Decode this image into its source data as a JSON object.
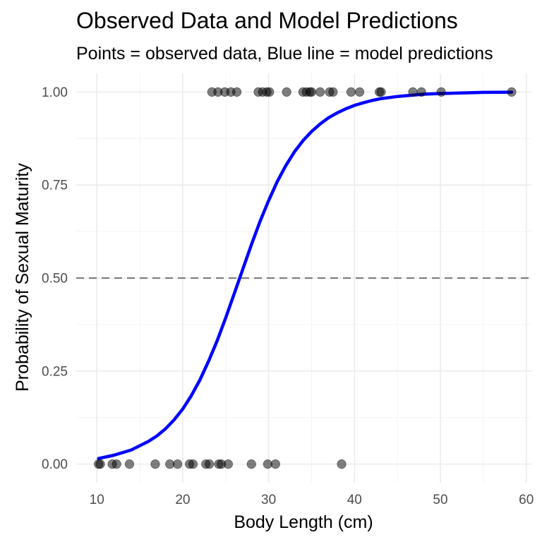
{
  "chart_data": {
    "type": "scatter",
    "title": "Observed Data and Model Predictions",
    "subtitle": "Points = observed data, Blue line = model predictions",
    "xlabel": "Body Length (cm)",
    "ylabel": "Probability of Sexual Maturity",
    "xlim": [
      7.6,
      60.6
    ],
    "ylim": [
      -0.05,
      1.05
    ],
    "x_ticks": [
      10,
      20,
      30,
      40,
      50,
      60
    ],
    "x_tick_labels": [
      "10",
      "20",
      "30",
      "40",
      "50",
      "60"
    ],
    "y_ticks": [
      0,
      0.25,
      0.5,
      0.75,
      1.0
    ],
    "y_tick_labels": [
      "0.00",
      "0.25",
      "0.50",
      "0.75",
      "1.00"
    ],
    "x_minor_ticks": [
      15,
      25,
      35,
      45,
      55
    ],
    "y_minor_ticks": [
      0.125,
      0.375,
      0.625,
      0.875
    ],
    "grid": true,
    "reference_line": {
      "y": 0.5,
      "style": "dashed",
      "color": "#7f7f7f"
    },
    "series": [
      {
        "kind": "points",
        "color": "#000000",
        "opacity": 0.5,
        "x": [
          10.2,
          10.4,
          11.8,
          12.3,
          13.8,
          16.8,
          18.5,
          19.4,
          20.8,
          21.2,
          22.7,
          23.1,
          24.2,
          24.5,
          25.3,
          28.0,
          29.9,
          30.8,
          38.5,
          23.4,
          24.1,
          24.9,
          25.6,
          26.3,
          28.8,
          29.3,
          29.8,
          30.1,
          32.1,
          34.0,
          34.4,
          34.8,
          35.0,
          36.0,
          37.1,
          37.5,
          39.6,
          40.6,
          42.9,
          43.1,
          46.8,
          47.8,
          50.1,
          58.3
        ],
        "y": [
          0,
          0,
          0,
          0,
          0,
          0,
          0,
          0,
          0,
          0,
          0,
          0,
          0,
          0,
          0,
          0,
          0,
          0,
          0,
          1,
          1,
          1,
          1,
          1,
          1,
          1,
          1,
          1,
          1,
          1,
          1,
          1,
          1,
          1,
          1,
          1,
          1,
          1,
          1,
          1,
          1,
          1,
          1,
          1
        ]
      },
      {
        "kind": "line",
        "color": "#0000ff",
        "x": [
          10.2,
          12,
          14,
          16,
          17,
          18,
          19,
          20,
          21,
          22,
          23,
          24,
          25,
          26,
          27,
          28,
          29,
          30,
          31,
          32,
          33,
          34,
          35,
          36,
          37,
          38,
          39,
          40,
          41,
          42,
          43,
          44,
          45,
          46,
          48,
          50,
          52,
          55,
          58.3
        ],
        "y": [
          0.015,
          0.024,
          0.038,
          0.061,
          0.076,
          0.095,
          0.119,
          0.148,
          0.184,
          0.226,
          0.276,
          0.331,
          0.393,
          0.458,
          0.524,
          0.59,
          0.652,
          0.708,
          0.759,
          0.802,
          0.839,
          0.869,
          0.894,
          0.914,
          0.931,
          0.944,
          0.955,
          0.964,
          0.971,
          0.977,
          0.982,
          0.985,
          0.988,
          0.99,
          0.994,
          0.996,
          0.997,
          0.999,
          0.9995
        ]
      }
    ]
  }
}
